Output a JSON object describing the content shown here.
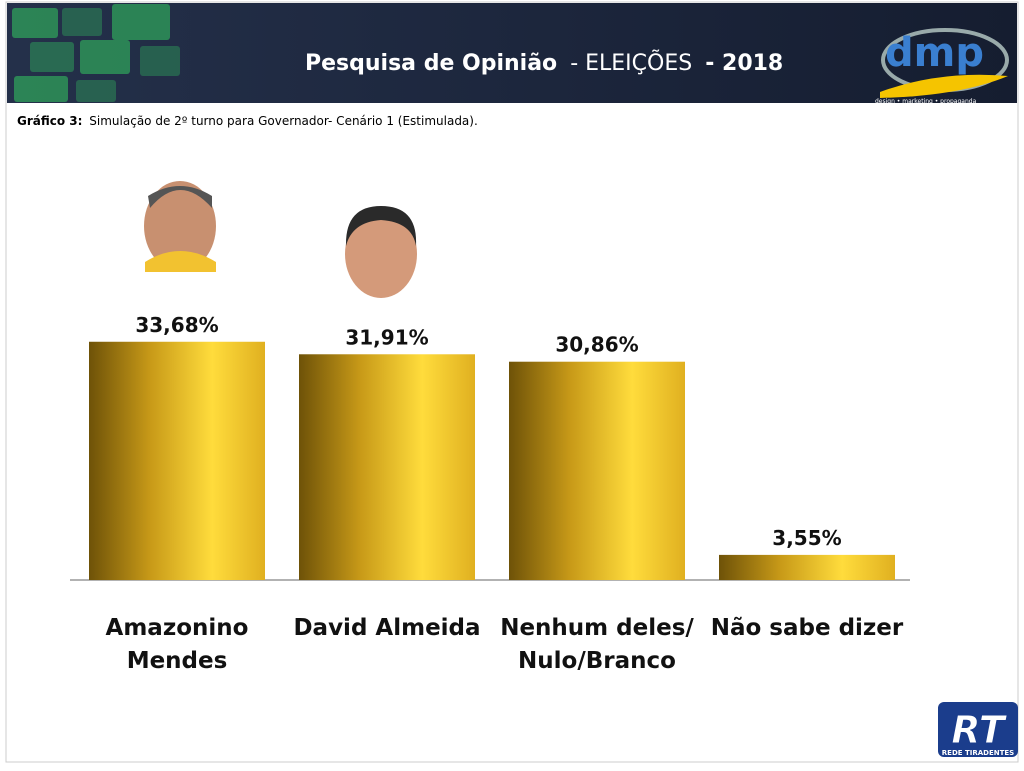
{
  "header": {
    "title": [
      "Pesquisa de Opinião",
      "- ELEIÇÕES",
      "- 2018"
    ],
    "logo": "dmp",
    "logo_tagline": "design • marketing • propaganda"
  },
  "footer": {
    "logo": "RT",
    "logo_name": "REDE TIRADENTES"
  },
  "chart_data": {
    "type": "bar",
    "subtitle": [
      "Gráfico 3:",
      "Simulação de 2º turno para Governador- Cenário 1 (Estimulada)."
    ],
    "categories": [
      [
        "Amazonino",
        "Mendes"
      ],
      [
        "David Almeida"
      ],
      [
        "Nenhum deles/",
        "Nulo/Branco"
      ],
      [
        "Não sabe dizer"
      ]
    ],
    "values": [
      33.68,
      31.91,
      30.86,
      3.55
    ],
    "value_labels": [
      "33,68%",
      "31,91%",
      "30,86%",
      "3,55%"
    ],
    "ylim": [
      0,
      47.5
    ],
    "color": "#f2c420"
  }
}
